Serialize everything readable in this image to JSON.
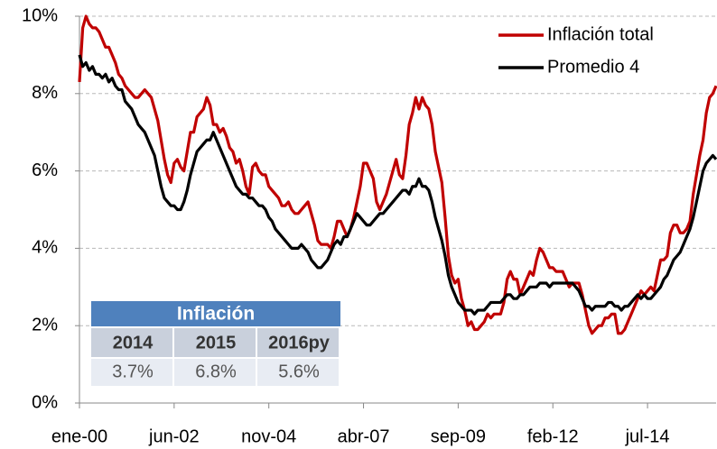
{
  "chart_data": {
    "type": "line",
    "categories": [
      "ene-00",
      null,
      null,
      null,
      null,
      null,
      null,
      null,
      null,
      null,
      null,
      null,
      null,
      null,
      null,
      null,
      null,
      null,
      null,
      null,
      null,
      null,
      null,
      null,
      null,
      null,
      null,
      null,
      null,
      "jun-02",
      null,
      null,
      null,
      null,
      null,
      null,
      null,
      null,
      null,
      null,
      null,
      null,
      null,
      null,
      null,
      null,
      null,
      null,
      null,
      null,
      null,
      null,
      null,
      null,
      null,
      null,
      null,
      null,
      "nov-04",
      null,
      null,
      null,
      null,
      null,
      null,
      null,
      null,
      null,
      null,
      null,
      null,
      null,
      null,
      null,
      null,
      null,
      null,
      null,
      null,
      null,
      null,
      null,
      null,
      null,
      null,
      null,
      null,
      "abr-07",
      null,
      null,
      null,
      null,
      null,
      null,
      null,
      null,
      null,
      null,
      null,
      null,
      null,
      null,
      null,
      null,
      null,
      null,
      null,
      null,
      null,
      null,
      null,
      null,
      null,
      null,
      null,
      null,
      "sep-09",
      null,
      null,
      null,
      null,
      null,
      null,
      null,
      null,
      null,
      null,
      null,
      null,
      null,
      null,
      null,
      null,
      null,
      null,
      null,
      null,
      null,
      null,
      null,
      null,
      null,
      null,
      null,
      null,
      "feb-12",
      null,
      null,
      null,
      null,
      null,
      null,
      null,
      null,
      null,
      null,
      null,
      null,
      null,
      null,
      null,
      null,
      null,
      null,
      null,
      null,
      null,
      null,
      null,
      null,
      null,
      null,
      null,
      null,
      "jul-14",
      null,
      null,
      null,
      null,
      null,
      null,
      null,
      null,
      null,
      null,
      null,
      null,
      null,
      null,
      null,
      null,
      null,
      null,
      null,
      null,
      null
    ],
    "series": [
      {
        "name": "Inflación total",
        "color": "#c00000",
        "values": [
          8.3,
          9.7,
          10.0,
          9.8,
          9.7,
          9.7,
          9.6,
          9.4,
          9.2,
          9.2,
          9.0,
          8.8,
          8.5,
          8.4,
          8.2,
          8.1,
          8.0,
          7.9,
          7.9,
          8.0,
          8.1,
          8.0,
          7.9,
          7.6,
          7.3,
          6.8,
          6.3,
          5.9,
          5.7,
          6.2,
          6.3,
          6.1,
          6.0,
          6.5,
          7.0,
          7.0,
          7.4,
          7.5,
          7.6,
          7.9,
          7.7,
          7.2,
          7.2,
          7.0,
          7.1,
          6.9,
          6.6,
          6.5,
          6.2,
          6.3,
          6.0,
          5.6,
          5.4,
          6.1,
          6.2,
          6.0,
          5.9,
          5.9,
          5.6,
          5.5,
          5.4,
          5.3,
          5.1,
          5.1,
          5.2,
          5.0,
          4.9,
          4.9,
          5.0,
          5.1,
          5.2,
          4.9,
          4.6,
          4.2,
          4.1,
          4.1,
          4.1,
          4.0,
          4.3,
          4.7,
          4.7,
          4.5,
          4.3,
          4.5,
          4.8,
          5.2,
          5.6,
          6.2,
          6.2,
          6.0,
          5.8,
          5.2,
          5.0,
          5.2,
          5.4,
          5.7,
          6.0,
          6.3,
          5.9,
          5.8,
          6.4,
          7.2,
          7.5,
          7.9,
          7.6,
          7.9,
          7.7,
          7.6,
          7.2,
          6.5,
          6.1,
          5.7,
          4.8,
          3.8,
          3.3,
          3.1,
          3.2,
          2.7,
          2.4,
          2.0,
          2.1,
          1.9,
          1.9,
          2.0,
          2.1,
          2.3,
          2.2,
          2.3,
          2.3,
          2.3,
          2.6,
          3.2,
          3.4,
          3.2,
          3.2,
          2.8,
          3.0,
          3.2,
          3.4,
          3.3,
          3.7,
          4.0,
          3.9,
          3.7,
          3.5,
          3.5,
          3.4,
          3.4,
          3.4,
          3.2,
          3.0,
          3.1,
          3.1,
          3.1,
          2.8,
          2.4,
          2.0,
          1.8,
          1.9,
          2.0,
          2.0,
          2.2,
          2.2,
          2.3,
          2.3,
          1.8,
          1.8,
          1.9,
          2.1,
          2.3,
          2.5,
          2.7,
          2.9,
          2.8,
          2.9,
          3.0,
          2.9,
          3.3,
          3.7,
          3.7,
          3.8,
          4.4,
          4.6,
          4.6,
          4.4,
          4.4,
          4.5,
          4.7,
          5.4,
          5.9,
          6.4,
          6.8,
          7.5,
          7.9,
          8.0,
          8.2
        ]
      },
      {
        "name": "Promedio 4",
        "color": "#000000",
        "values": [
          9.0,
          8.7,
          8.8,
          8.6,
          8.7,
          8.5,
          8.5,
          8.4,
          8.5,
          8.3,
          8.4,
          8.2,
          8.1,
          8.1,
          7.8,
          7.7,
          7.6,
          7.4,
          7.2,
          7.1,
          7.0,
          6.8,
          6.6,
          6.4,
          6.0,
          5.6,
          5.3,
          5.2,
          5.1,
          5.1,
          5.0,
          5.0,
          5.2,
          5.5,
          5.9,
          6.2,
          6.5,
          6.6,
          6.7,
          6.8,
          6.8,
          7.0,
          6.8,
          6.6,
          6.4,
          6.2,
          6.0,
          5.8,
          5.6,
          5.5,
          5.4,
          5.4,
          5.3,
          5.3,
          5.2,
          5.1,
          5.1,
          5.0,
          4.8,
          4.7,
          4.5,
          4.4,
          4.3,
          4.2,
          4.1,
          4.0,
          4.0,
          4.0,
          4.1,
          4.0,
          3.9,
          3.7,
          3.6,
          3.5,
          3.5,
          3.6,
          3.7,
          3.9,
          4.1,
          4.2,
          4.1,
          4.3,
          4.3,
          4.5,
          4.7,
          4.9,
          4.8,
          4.7,
          4.6,
          4.6,
          4.7,
          4.8,
          4.9,
          4.9,
          5.0,
          5.1,
          5.2,
          5.3,
          5.4,
          5.5,
          5.5,
          5.4,
          5.6,
          5.6,
          5.8,
          5.6,
          5.6,
          5.5,
          5.2,
          4.8,
          4.5,
          4.2,
          3.8,
          3.3,
          3.0,
          2.8,
          2.6,
          2.5,
          2.4,
          2.4,
          2.4,
          2.3,
          2.4,
          2.4,
          2.4,
          2.5,
          2.6,
          2.6,
          2.6,
          2.6,
          2.7,
          2.8,
          2.8,
          2.7,
          2.7,
          2.8,
          2.8,
          2.9,
          3.0,
          3.0,
          3.0,
          3.1,
          3.1,
          3.1,
          3.0,
          3.1,
          3.1,
          3.1,
          3.1,
          3.1,
          3.1,
          3.1,
          3.0,
          2.9,
          2.7,
          2.5,
          2.5,
          2.4,
          2.5,
          2.5,
          2.5,
          2.5,
          2.6,
          2.6,
          2.5,
          2.5,
          2.4,
          2.5,
          2.5,
          2.6,
          2.7,
          2.8,
          2.7,
          2.8,
          2.7,
          2.7,
          2.8,
          2.9,
          3.0,
          3.2,
          3.3,
          3.5,
          3.7,
          3.8,
          3.9,
          4.1,
          4.3,
          4.5,
          4.8,
          5.2,
          5.6,
          6.0,
          6.2,
          6.3,
          6.4,
          6.3
        ]
      }
    ],
    "ylim": [
      0,
      10
    ],
    "yticks": [
      {
        "value": 0,
        "label": "0%"
      },
      {
        "value": 2,
        "label": "2%"
      },
      {
        "value": 4,
        "label": "4%"
      },
      {
        "value": 6,
        "label": "6%"
      },
      {
        "value": 8,
        "label": "8%"
      },
      {
        "value": 10,
        "label": "10%"
      }
    ],
    "grid": true,
    "legend": "top-right",
    "table": {
      "title": "Inflación",
      "columns": [
        "2014",
        "2015",
        "2016py"
      ],
      "rows": [
        [
          "3.7%",
          "6.8%",
          "5.6%"
        ]
      ]
    }
  }
}
